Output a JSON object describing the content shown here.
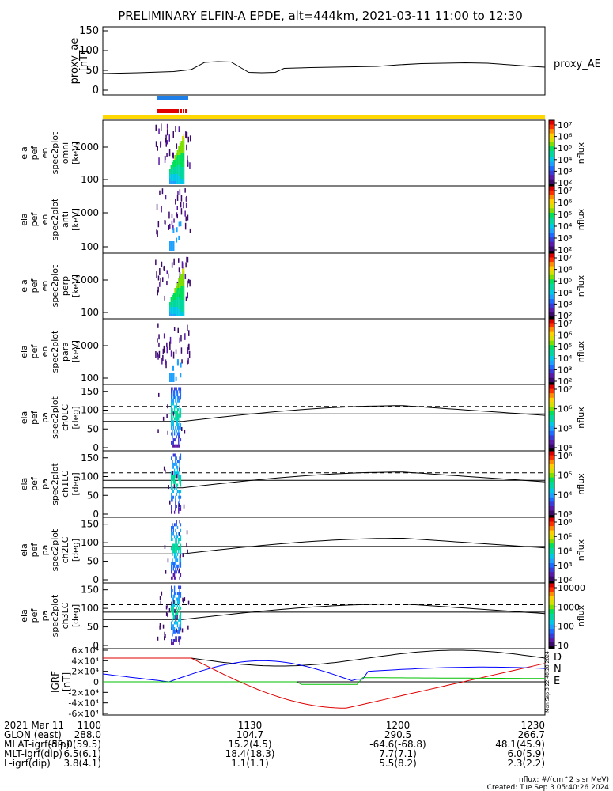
{
  "title": "PRELIMINARY ELFIN-A EPDE, alt=444km, 2021-03-11 11:00 to 12:30",
  "ae_panel": {
    "ylabel_lines": [
      "proxy_ae",
      "[nT]"
    ],
    "legend": "proxy_AE",
    "yticks": [
      "0",
      "50",
      "100",
      "150"
    ],
    "ylim": [
      0,
      160
    ],
    "series": [
      [
        0,
        42
      ],
      [
        8,
        44
      ],
      [
        16,
        47
      ],
      [
        20,
        52
      ],
      [
        23,
        70
      ],
      [
        26,
        72
      ],
      [
        29,
        71
      ],
      [
        31,
        58
      ],
      [
        33,
        45
      ],
      [
        36,
        44
      ],
      [
        39,
        45
      ],
      [
        41,
        55
      ],
      [
        44,
        56
      ],
      [
        47,
        57
      ],
      [
        52,
        58
      ],
      [
        57,
        59
      ],
      [
        62,
        60
      ],
      [
        67,
        64
      ],
      [
        72,
        67
      ],
      [
        77,
        68
      ],
      [
        82,
        69
      ],
      [
        87,
        68
      ],
      [
        92,
        64
      ],
      [
        97,
        60
      ],
      [
        100,
        58
      ]
    ]
  },
  "bars": {
    "blue": {
      "color": "#1e7fe8"
    },
    "red": {
      "color": "#e00000"
    },
    "yellow": {
      "color": "#ffd700"
    }
  },
  "spec_panels": [
    {
      "ylabel_lines": [
        "ela",
        "pef",
        "en",
        "spec2plot",
        "omni",
        "[keV]"
      ],
      "yticks": [
        "100",
        "1000"
      ]
    },
    {
      "ylabel_lines": [
        "ela",
        "pef",
        "en",
        "spec2plot",
        "anti",
        "[keV]"
      ],
      "yticks": [
        "100",
        "1000"
      ]
    },
    {
      "ylabel_lines": [
        "ela",
        "pef",
        "en",
        "spec2plot",
        "perp",
        "[keV]"
      ],
      "yticks": [
        "100",
        "1000"
      ]
    },
    {
      "ylabel_lines": [
        "ela",
        "pef",
        "en",
        "spec2plot",
        "para",
        "[keV]"
      ],
      "yticks": [
        "100",
        "1000"
      ]
    }
  ],
  "pa_panels": [
    {
      "ylabel_lines": [
        "ela",
        "pef",
        "pa",
        "spec2plot",
        "ch0LC",
        "[deg]"
      ],
      "yticks": [
        "0",
        "50",
        "100",
        "150"
      ]
    },
    {
      "ylabel_lines": [
        "ela",
        "pef",
        "pa",
        "spec2plot",
        "ch1LC",
        "[deg]"
      ],
      "yticks": [
        "0",
        "50",
        "100",
        "150"
      ]
    },
    {
      "ylabel_lines": [
        "ela",
        "pef",
        "pa",
        "spec2plot",
        "ch2LC",
        "[deg]"
      ],
      "yticks": [
        "0",
        "50",
        "100",
        "150"
      ]
    },
    {
      "ylabel_lines": [
        "ela",
        "pef",
        "pa",
        "spec2plot",
        "ch3LC",
        "[deg]"
      ],
      "yticks": [
        "0",
        "50",
        "100",
        "150"
      ]
    }
  ],
  "colorbars": [
    {
      "ticks": [
        "10⁷",
        "10⁶",
        "10⁵",
        "10⁴",
        "10³",
        "10²"
      ],
      "label": "nflux"
    },
    {
      "ticks": [
        "10⁷",
        "10⁶",
        "10⁵",
        "10⁴",
        "10³",
        "10²"
      ],
      "label": "nflux"
    },
    {
      "ticks": [
        "10⁷",
        "10⁶",
        "10⁵",
        "10⁴",
        "10³",
        "10²"
      ],
      "label": "nflux"
    },
    {
      "ticks": [
        "10⁷",
        "10⁶",
        "10⁵",
        "10⁴",
        "10³",
        "10²"
      ],
      "label": "nflux"
    },
    {
      "ticks": [
        "10⁷",
        "10⁶",
        "10⁵",
        "10⁴"
      ],
      "label": "nflux"
    },
    {
      "ticks": [
        "10⁶",
        "10⁵",
        "10⁴",
        "10³"
      ],
      "label": "nflux"
    },
    {
      "ticks": [
        "10⁶",
        "10⁵",
        "10⁴",
        "10³",
        "10²"
      ],
      "label": "nflux"
    },
    {
      "ticks": [
        "10000",
        "1000",
        "100",
        "10"
      ],
      "label": "nflux"
    }
  ],
  "igrf_panel": {
    "ylabel_lines": [
      "IGRF",
      "[nT]"
    ],
    "yticks": [
      "-6×10⁴",
      "-4×10⁴",
      "-2×10⁴",
      "0",
      "2×10⁴",
      "4×10⁴",
      "6×10⁴"
    ],
    "legend": [
      {
        "name": "D",
        "color": "#e00000"
      },
      {
        "name": "N",
        "color": "#0000ff"
      },
      {
        "name": "E",
        "color": "#00c000"
      }
    ],
    "side_text": "Mon Sep 3 22:40:28 2024"
  },
  "footer": {
    "rows": [
      {
        "label": "2021 Mar 11",
        "vals": [
          "1100",
          "1130",
          "1200",
          "1230"
        ]
      },
      {
        "label": "GLON (east)",
        "vals": [
          "288.0",
          "104.7",
          "290.5",
          "266.7"
        ]
      },
      {
        "label": "MLAT-igrf(dip)",
        "vals": [
          "-59.0(59.5)",
          "15.2(4.5)",
          "-64.6(-68.8)",
          "48.1(45.9)"
        ]
      },
      {
        "label": "MLT-igrf(dip)",
        "vals": [
          "6.5(6.1)",
          "18.4(18.3)",
          "7.7(7.1)",
          "6.0(5.9)"
        ]
      },
      {
        "label": "L-igrf(dip)",
        "vals": [
          "3.8(4.1)",
          "1.1(1.1)",
          "5.5(8.2)",
          "2.3(2.2)"
        ]
      }
    ],
    "units": "nflux: #/(cm^2 s sr MeV)",
    "created": "Created: Tue Sep  3 05:40:26 2024"
  }
}
